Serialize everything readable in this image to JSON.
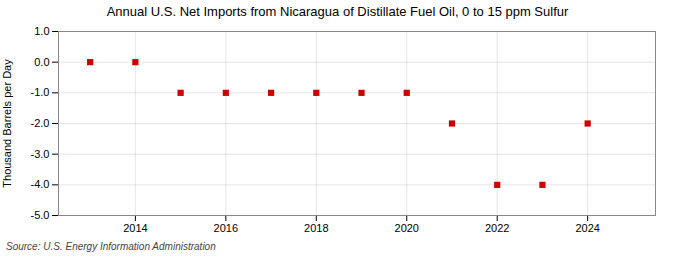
{
  "chart_data": {
    "type": "scatter",
    "title": "Annual U.S. Net Imports from Nicaragua of Distillate Fuel Oil, 0 to 15 ppm Sulfur",
    "y_label": "Thousand Barrels per Day",
    "annotation": "Source: U.S. Energy Information Administration",
    "x": [
      2013,
      2014,
      2015,
      2016,
      2017,
      2018,
      2019,
      2020,
      2021,
      2022,
      2023,
      2024
    ],
    "values": [
      0.0,
      0.0,
      -1.0,
      -1.0,
      -1.0,
      -1.0,
      -1.0,
      -1.0,
      -2.0,
      -4.0,
      -4.0,
      -2.0
    ],
    "color": "#cc0000",
    "marker": "square",
    "xlim": [
      2012.3,
      2025.5
    ],
    "xticks": [
      2014,
      2016,
      2018,
      2020,
      2022,
      2024
    ],
    "ylim": [
      -5.0,
      1.0
    ],
    "yticks": [
      {
        "value": 1.0,
        "label": "1.0"
      },
      {
        "value": 0.0,
        "label": "0.0"
      },
      {
        "value": -1.0,
        "label": "-1.0"
      },
      {
        "value": -2.0,
        "label": "-2.0"
      },
      {
        "value": -3.0,
        "label": "-3.0"
      },
      {
        "value": -4.0,
        "label": "-4.0"
      },
      {
        "value": -5.0,
        "label": "-5.0"
      }
    ],
    "grid": true
  }
}
